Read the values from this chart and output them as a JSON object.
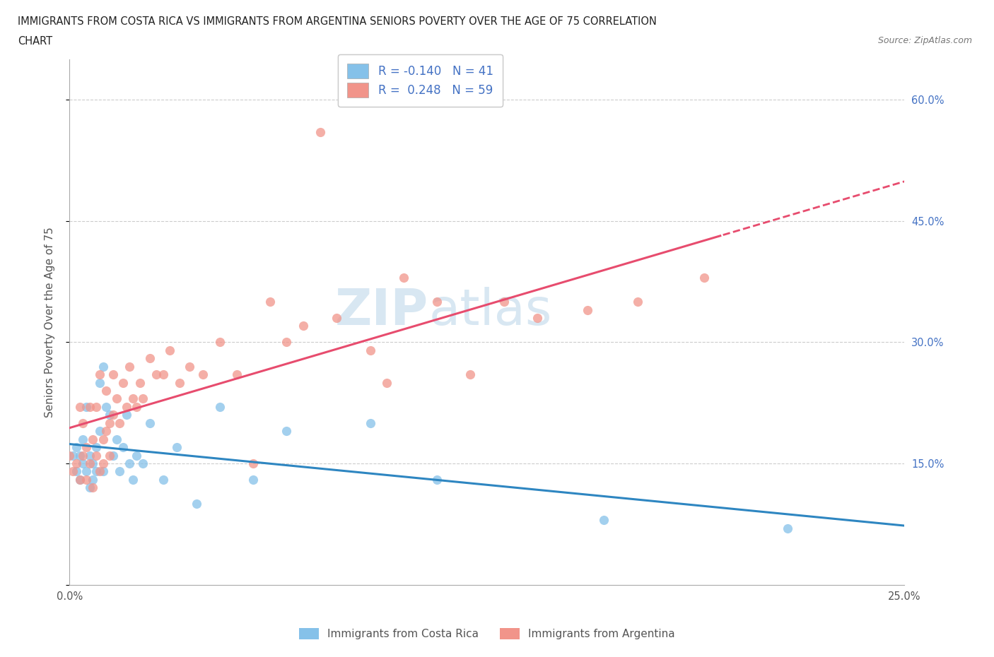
{
  "title_line1": "IMMIGRANTS FROM COSTA RICA VS IMMIGRANTS FROM ARGENTINA SENIORS POVERTY OVER THE AGE OF 75 CORRELATION",
  "title_line2": "CHART",
  "source_text": "Source: ZipAtlas.com",
  "ylabel": "Seniors Poverty Over the Age of 75",
  "xlim": [
    0.0,
    0.25
  ],
  "ylim": [
    0.0,
    0.65
  ],
  "x_ticks": [
    0.0,
    0.05,
    0.1,
    0.15,
    0.2,
    0.25
  ],
  "x_tick_labels": [
    "0.0%",
    "",
    "",
    "",
    "",
    "25.0%"
  ],
  "y_ticks": [
    0.0,
    0.15,
    0.3,
    0.45,
    0.6
  ],
  "y_tick_labels_right": [
    "",
    "15.0%",
    "30.0%",
    "45.0%",
    "60.0%"
  ],
  "R_costa_rica": -0.14,
  "N_costa_rica": 41,
  "R_argentina": 0.248,
  "N_argentina": 59,
  "color_costa_rica": "#85C1E9",
  "color_argentina": "#F1948A",
  "line_color_costa_rica": "#2E86C1",
  "line_color_argentina": "#E74C6E",
  "watermark_zip": "ZIP",
  "watermark_atlas": "atlas",
  "legend_label_1": "Immigrants from Costa Rica",
  "legend_label_2": "Immigrants from Argentina",
  "costa_rica_x": [
    0.001,
    0.002,
    0.002,
    0.003,
    0.003,
    0.004,
    0.004,
    0.005,
    0.005,
    0.006,
    0.006,
    0.007,
    0.007,
    0.008,
    0.008,
    0.009,
    0.009,
    0.01,
    0.01,
    0.011,
    0.012,
    0.013,
    0.014,
    0.015,
    0.016,
    0.017,
    0.018,
    0.019,
    0.02,
    0.022,
    0.024,
    0.028,
    0.032,
    0.038,
    0.045,
    0.055,
    0.065,
    0.09,
    0.11,
    0.16,
    0.215
  ],
  "costa_rica_y": [
    0.16,
    0.14,
    0.17,
    0.13,
    0.16,
    0.15,
    0.18,
    0.14,
    0.22,
    0.12,
    0.16,
    0.15,
    0.13,
    0.14,
    0.17,
    0.25,
    0.19,
    0.27,
    0.14,
    0.22,
    0.21,
    0.16,
    0.18,
    0.14,
    0.17,
    0.21,
    0.15,
    0.13,
    0.16,
    0.15,
    0.2,
    0.13,
    0.17,
    0.1,
    0.22,
    0.13,
    0.19,
    0.2,
    0.13,
    0.08,
    0.07
  ],
  "argentina_x": [
    0.0,
    0.001,
    0.002,
    0.003,
    0.003,
    0.004,
    0.004,
    0.005,
    0.005,
    0.006,
    0.006,
    0.007,
    0.007,
    0.008,
    0.008,
    0.009,
    0.009,
    0.01,
    0.01,
    0.011,
    0.011,
    0.012,
    0.012,
    0.013,
    0.013,
    0.014,
    0.015,
    0.016,
    0.017,
    0.018,
    0.019,
    0.02,
    0.021,
    0.022,
    0.024,
    0.026,
    0.028,
    0.03,
    0.033,
    0.036,
    0.04,
    0.045,
    0.05,
    0.055,
    0.06,
    0.065,
    0.07,
    0.075,
    0.08,
    0.09,
    0.095,
    0.1,
    0.11,
    0.12,
    0.13,
    0.14,
    0.155,
    0.17,
    0.19
  ],
  "argentina_y": [
    0.16,
    0.14,
    0.15,
    0.22,
    0.13,
    0.2,
    0.16,
    0.17,
    0.13,
    0.15,
    0.22,
    0.18,
    0.12,
    0.16,
    0.22,
    0.14,
    0.26,
    0.15,
    0.18,
    0.24,
    0.19,
    0.2,
    0.16,
    0.26,
    0.21,
    0.23,
    0.2,
    0.25,
    0.22,
    0.27,
    0.23,
    0.22,
    0.25,
    0.23,
    0.28,
    0.26,
    0.26,
    0.29,
    0.25,
    0.27,
    0.26,
    0.3,
    0.26,
    0.15,
    0.35,
    0.3,
    0.32,
    0.56,
    0.33,
    0.29,
    0.25,
    0.38,
    0.35,
    0.26,
    0.35,
    0.33,
    0.34,
    0.35,
    0.38
  ]
}
